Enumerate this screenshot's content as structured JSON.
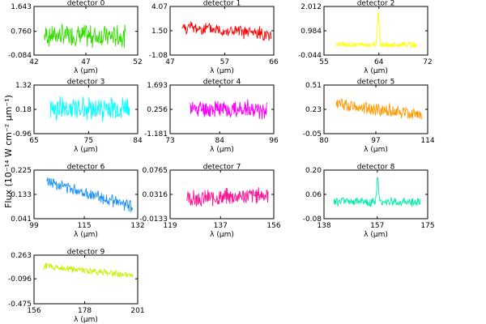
{
  "figure": {
    "ylabel": "Flux (10⁻¹⁴ W cm⁻² μm⁻¹)"
  },
  "chart_data": [
    {
      "type": "line",
      "title": "detector 0",
      "xlabel": "λ (μm)",
      "x_ticks": [
        "42",
        "47",
        "52"
      ],
      "y_ticks": [
        "-0.084",
        "0.760",
        "1.643"
      ],
      "xlim": [
        42,
        52
      ],
      "ylim": [
        -0.084,
        1.643
      ],
      "x_range": [
        43.0,
        50.8
      ],
      "color": "#33dd00",
      "level": [
        0.62,
        0.58
      ],
      "amp": 0.45,
      "peak": null
    },
    {
      "type": "line",
      "title": "detector 1",
      "xlabel": "λ (μm)",
      "x_ticks": [
        "47",
        "57",
        "66"
      ],
      "y_ticks": [
        "-1.08",
        "1.50",
        "4.07"
      ],
      "xlim": [
        47,
        66
      ],
      "ylim": [
        -1.08,
        4.07
      ],
      "x_range": [
        49.2,
        65.5
      ],
      "color": "#ff0000",
      "level": [
        1.9,
        1.1
      ],
      "amp": 0.8,
      "peak": null
    },
    {
      "type": "line",
      "title": "detector 2",
      "xlabel": "λ (μm)",
      "x_ticks": [
        "55",
        "64",
        "72"
      ],
      "y_ticks": [
        "-0.044",
        "0.984",
        "2.012"
      ],
      "xlim": [
        55,
        72
      ],
      "ylim": [
        -0.044,
        2.012
      ],
      "x_range": [
        57.0,
        70.2
      ],
      "color": "#ffff00",
      "level": [
        0.4,
        0.38
      ],
      "amp": 0.14,
      "peak": [
        63.9,
        1.75
      ]
    },
    {
      "type": "line",
      "title": "detector 3",
      "xlabel": "λ (μm)",
      "x_ticks": [
        "65",
        "75",
        "84"
      ],
      "y_ticks": [
        "-0.96",
        "0.18",
        "1.32"
      ],
      "xlim": [
        65,
        84
      ],
      "ylim": [
        -0.96,
        1.32
      ],
      "x_range": [
        68.0,
        82.5
      ],
      "color": "#00ffff",
      "level": [
        0.22,
        0.2
      ],
      "amp": 0.65,
      "peak": null
    },
    {
      "type": "line",
      "title": "detector 4",
      "xlabel": "λ (μm)",
      "x_ticks": [
        "73",
        "84",
        "96"
      ],
      "y_ticks": [
        "-1.181",
        "0.256",
        "1.693"
      ],
      "xlim": [
        73,
        96
      ],
      "ylim": [
        -1.181,
        1.693
      ],
      "x_range": [
        77.5,
        94.5
      ],
      "color": "#ff00ff",
      "level": [
        0.3,
        0.25
      ],
      "amp": 0.6,
      "peak": null
    },
    {
      "type": "line",
      "title": "detector 5",
      "xlabel": "λ (μm)",
      "x_ticks": [
        "80",
        "97",
        "114"
      ],
      "y_ticks": [
        "-0.05",
        "0.23",
        "0.51"
      ],
      "xlim": [
        80,
        114
      ],
      "ylim": [
        -0.05,
        0.51
      ],
      "x_range": [
        84.0,
        112.0
      ],
      "color": "#ff9900",
      "level": [
        0.29,
        0.17
      ],
      "amp": 0.09,
      "peak": null
    },
    {
      "type": "line",
      "title": "detector 6",
      "xlabel": "λ (μm)",
      "x_ticks": [
        "99",
        "115",
        "132"
      ],
      "y_ticks": [
        "0.041",
        "0.133",
        "0.225"
      ],
      "xlim": [
        99,
        132
      ],
      "ylim": [
        0.041,
        0.225
      ],
      "x_range": [
        103.0,
        130.5
      ],
      "color": "#1e90ff",
      "level": [
        0.185,
        0.085
      ],
      "amp": 0.025,
      "peak": null
    },
    {
      "type": "line",
      "title": "detector 7",
      "xlabel": "λ (μm)",
      "x_ticks": [
        "119",
        "137",
        "156"
      ],
      "y_ticks": [
        "-0.0133",
        "0.0316",
        "0.0765"
      ],
      "xlim": [
        119,
        156
      ],
      "ylim": [
        -0.0133,
        0.0765
      ],
      "x_range": [
        125.0,
        154.0
      ],
      "color": "#ff1493",
      "level": [
        0.022,
        0.032
      ],
      "amp": 0.018,
      "peak": null
    },
    {
      "type": "line",
      "title": "detector 8",
      "xlabel": "λ (μm)",
      "x_ticks": [
        "138",
        "157",
        "175"
      ],
      "y_ticks": [
        "-0.08",
        "0.06",
        "0.20"
      ],
      "xlim": [
        138,
        175
      ],
      "ylim": [
        -0.08,
        0.2
      ],
      "x_range": [
        141.5,
        172.5
      ],
      "color": "#00eeaa",
      "level": [
        0.02,
        0.015
      ],
      "amp": 0.03,
      "peak": [
        157.2,
        0.16
      ]
    },
    {
      "type": "line",
      "title": "detector 9",
      "xlabel": "λ (μm)",
      "x_ticks": [
        "156",
        "178",
        "201"
      ],
      "y_ticks": [
        "-0.475",
        "-0.096",
        "0.263"
      ],
      "xlim": [
        156,
        201
      ],
      "ylim": [
        -0.475,
        0.263
      ],
      "x_range": [
        160.0,
        199.0
      ],
      "color": "#ccee00",
      "level": [
        0.1,
        -0.05
      ],
      "amp": 0.06,
      "peak": null
    }
  ]
}
